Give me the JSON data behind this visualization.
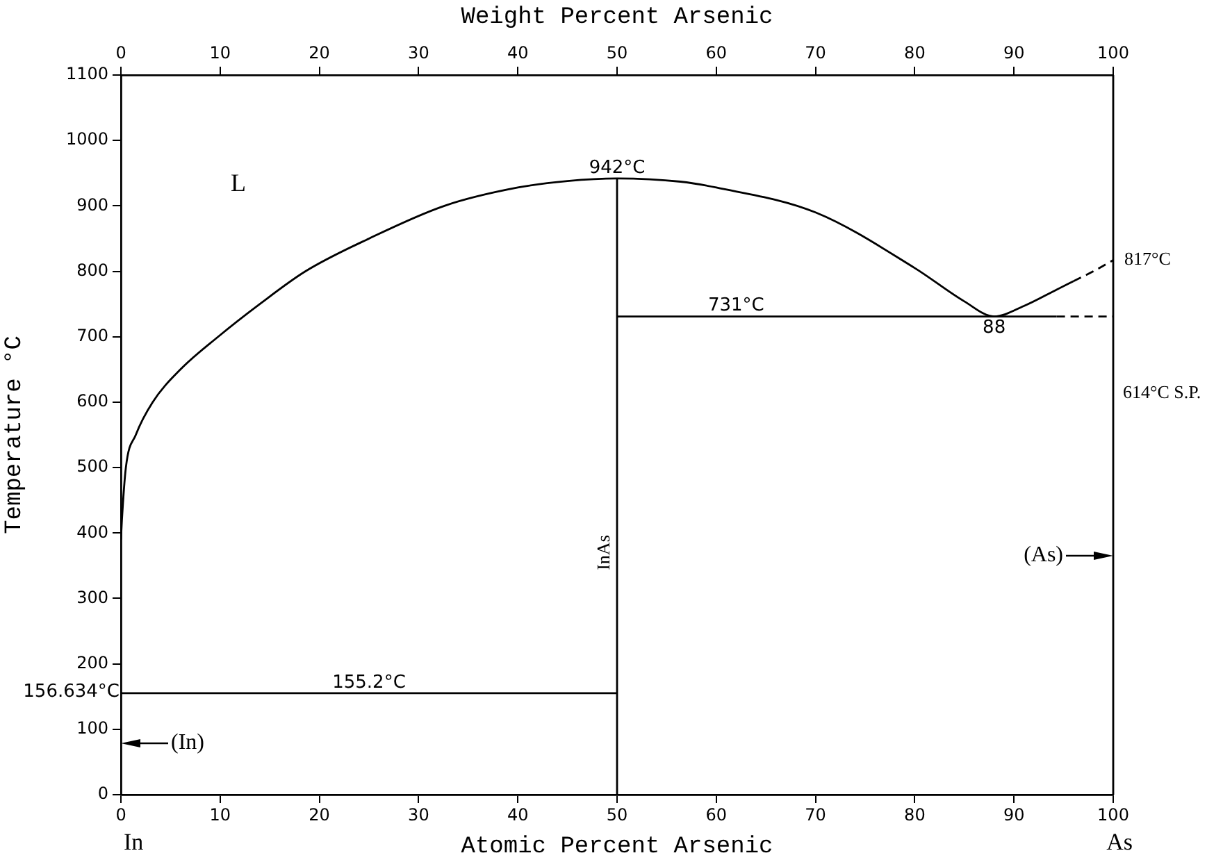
{
  "chart_data": {
    "type": "line",
    "xlabel": "Atomic Percent Arsenic",
    "x2label": "Weight Percent Arsenic",
    "ylabel": "Temperature °C",
    "xlim": [
      0,
      100
    ],
    "xticks": [
      0,
      10,
      20,
      30,
      40,
      50,
      60,
      70,
      80,
      90,
      100
    ],
    "x2lim": [
      0,
      100
    ],
    "x2ticks": [
      0,
      10,
      20,
      30,
      40,
      50,
      60,
      70,
      80,
      90,
      100
    ],
    "ylim": [
      0,
      1100
    ],
    "yticks": [
      0,
      100,
      200,
      300,
      400,
      500,
      600,
      700,
      800,
      900,
      1000,
      1100
    ],
    "series": [
      {
        "color": "#000000",
        "line_style": "solid",
        "x": [
          0,
          0.1,
          0.5,
          1.5,
          3.2,
          6,
          9.8,
          14,
          18.6,
          25,
          32.6,
          40,
          45,
          50,
          56.4,
          60,
          70,
          80,
          85,
          88,
          91,
          94.3,
          96
        ],
        "values": [
          390,
          420,
          500,
          550,
          600,
          650,
          700,
          750,
          800,
          850,
          900,
          928,
          938,
          942,
          937,
          928,
          890,
          805,
          754,
          731,
          747,
          772,
          785
        ]
      },
      {
        "color": "#000000",
        "line_style": "dashed",
        "x": [
          96,
          98,
          100
        ],
        "values": [
          785,
          800,
          817
        ]
      },
      {
        "color": "#000000",
        "line_style": "solid",
        "x": [
          50,
          94.3
        ],
        "values": [
          731,
          731
        ]
      },
      {
        "color": "#000000",
        "line_style": "dashed",
        "x": [
          94.3,
          100
        ],
        "values": [
          731,
          731
        ]
      },
      {
        "color": "#000000",
        "line_style": "solid",
        "x": [
          0,
          50
        ],
        "values": [
          155.2,
          155.2
        ]
      },
      {
        "color": "#000000",
        "line_style": "solid",
        "x": [
          50,
          50
        ],
        "values": [
          0,
          942
        ]
      }
    ],
    "annotations": [
      "(In)",
      "(As)",
      "L",
      {
        "text": "942°C",
        "x": 50,
        "y": 942
      },
      {
        "text": "731°C",
        "x": 62,
        "y": 731
      },
      {
        "text": "88",
        "x": 88,
        "y": 731
      },
      {
        "text": "817°C",
        "x": 100,
        "y": 817
      },
      "614°C S.P.",
      {
        "text": "156.634°C",
        "x": 0,
        "y": 156.634
      },
      {
        "text": "155.2°C",
        "x": 25,
        "y": 155.2
      },
      {
        "text": "InAs",
        "x": 50,
        "y": 370
      },
      "In",
      "As"
    ]
  }
}
